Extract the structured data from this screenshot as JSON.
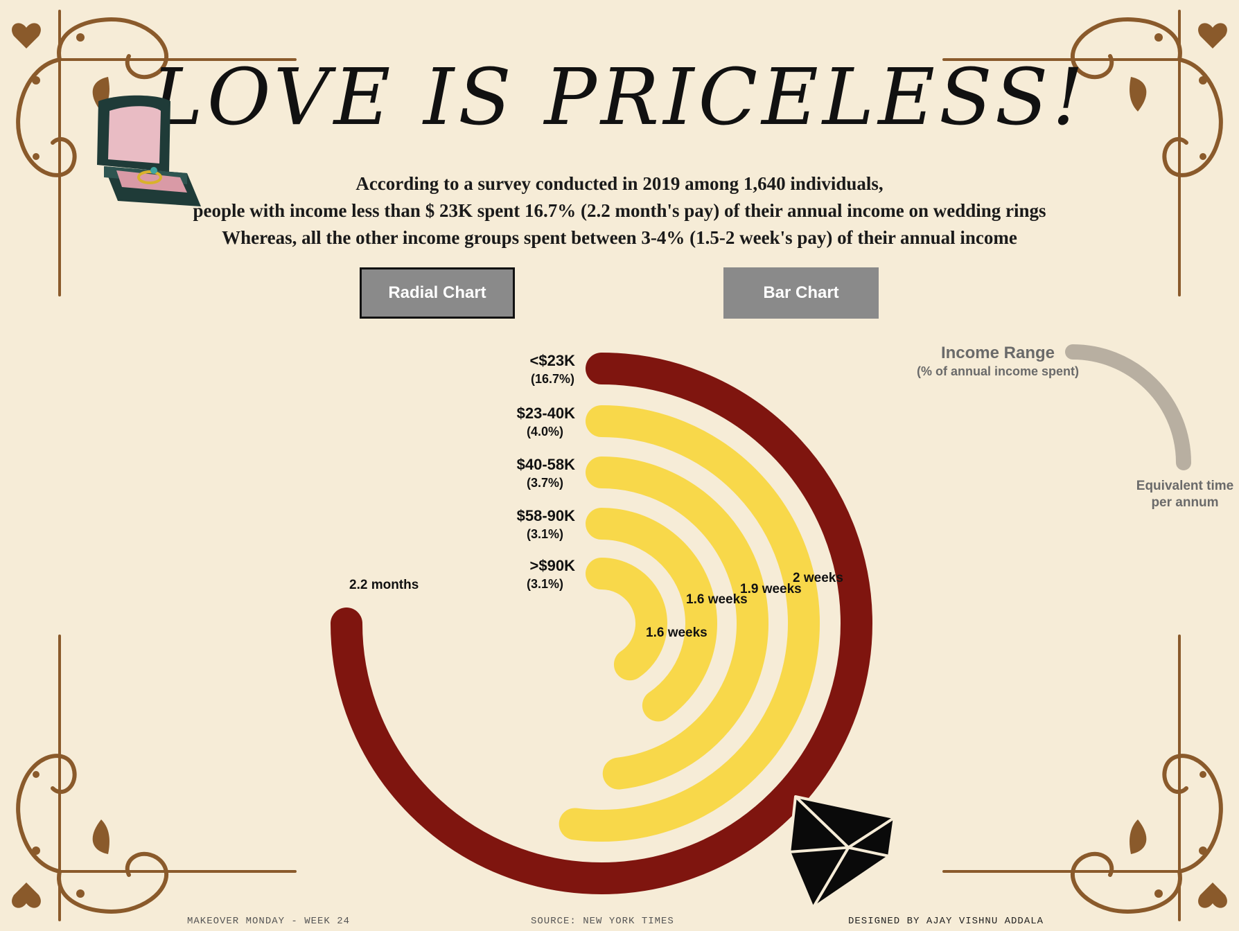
{
  "title": "LOVE IS PRICELESS!",
  "subtitle_lines": [
    "According to a survey conducted in 2019 among 1,640 individuals,",
    "people with income less than $ 23K spent 16.7% (2.2 month's pay) of their annual income on wedding rings",
    "Whereas, all the other income groups spent between 3-4% (1.5-2 week's pay) of their annual income"
  ],
  "buttons": {
    "radial": "Radial Chart",
    "bar": "Bar Chart"
  },
  "legend": {
    "title": "Income Range",
    "subtitle": "(% of annual income spent)",
    "end_label_line1": "Equivalent time",
    "end_label_line2": "per annum"
  },
  "footer": {
    "left": "MAKEOVER MONDAY - WEEK 24",
    "center": "SOURCE: NEW YORK TIMES",
    "right": "DESIGNED BY AJAY VISHNU ADDALA"
  },
  "colors": {
    "background": "#f6ecd7",
    "highlight_arc": "#7f150f",
    "other_arcs": "#f8d84a",
    "legend_arc": "#b8afa1",
    "ornament": "#8a5a2b",
    "button": "#8a8a8a"
  },
  "icons": [
    "ring-box-icon",
    "diamond-icon",
    "corner-ornament-icon"
  ],
  "chart_data": {
    "type": "radial-bar",
    "categories": [
      "<$23K",
      "$23-40K",
      "$40-58K",
      "$58-90K",
      ">$90K"
    ],
    "pct_labels": [
      "(16.7%)",
      "(4.0%)",
      "(3.7%)",
      "(3.1%)",
      "(3.1%)"
    ],
    "values": [
      16.7,
      4.0,
      3.7,
      3.1,
      3.1
    ],
    "time_labels": [
      "2.2 months",
      "2 weeks",
      "1.9 weeks",
      "1.6 weeks",
      "1.6 weeks"
    ],
    "highlight_index": 0
  }
}
